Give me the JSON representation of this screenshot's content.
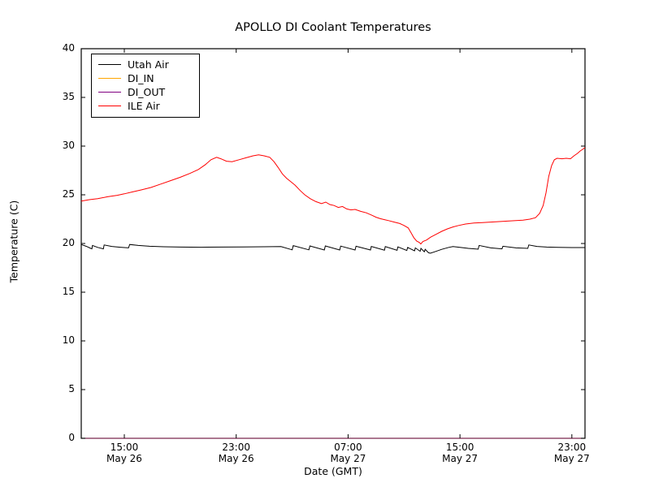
{
  "chart_data": {
    "type": "line",
    "title": "APOLLO DI Coolant Temperatures",
    "xlabel": "Date (GMT)",
    "ylabel": "Temperature (C)",
    "x_unit": "hours since May 26 00:00 GMT",
    "xlim": [
      11.92,
      47.94
    ],
    "ylim": [
      0,
      40
    ],
    "grid": false,
    "legend_position": "upper left",
    "background_color": "#ffffff",
    "frame_color": "#000000",
    "yticks": [
      0,
      5,
      10,
      15,
      20,
      25,
      30,
      35,
      40
    ],
    "xticks": [
      {
        "value": 15,
        "time": "15:00",
        "date": "May 26"
      },
      {
        "value": 23,
        "time": "23:00",
        "date": "May 26"
      },
      {
        "value": 31,
        "time": "07:00",
        "date": "May 27"
      },
      {
        "value": 39,
        "time": "15:00",
        "date": "May 27"
      },
      {
        "value": 47,
        "time": "23:00",
        "date": "May 27"
      }
    ],
    "series": [
      {
        "name": "Utah Air",
        "color": "#000000",
        "points": [
          [
            11.92,
            19.9
          ],
          [
            12.3,
            19.7
          ],
          [
            12.6,
            19.5
          ],
          [
            12.68,
            19.45
          ],
          [
            12.72,
            19.8
          ],
          [
            13.1,
            19.6
          ],
          [
            13.5,
            19.45
          ],
          [
            13.56,
            19.85
          ],
          [
            14.1,
            19.7
          ],
          [
            14.7,
            19.62
          ],
          [
            15.3,
            19.55
          ],
          [
            15.38,
            19.9
          ],
          [
            16.0,
            19.8
          ],
          [
            16.8,
            19.72
          ],
          [
            17.8,
            19.67
          ],
          [
            19.0,
            19.63
          ],
          [
            20.5,
            19.62
          ],
          [
            22.0,
            19.63
          ],
          [
            23.5,
            19.65
          ],
          [
            25.0,
            19.67
          ],
          [
            26.2,
            19.68
          ],
          [
            27.0,
            19.35
          ],
          [
            27.08,
            19.78
          ],
          [
            28.2,
            19.35
          ],
          [
            28.27,
            19.75
          ],
          [
            29.3,
            19.33
          ],
          [
            29.37,
            19.75
          ],
          [
            30.4,
            19.33
          ],
          [
            30.47,
            19.73
          ],
          [
            31.5,
            19.33
          ],
          [
            31.57,
            19.72
          ],
          [
            32.6,
            19.33
          ],
          [
            32.66,
            19.7
          ],
          [
            33.6,
            19.32
          ],
          [
            33.66,
            19.68
          ],
          [
            34.5,
            19.3
          ],
          [
            34.56,
            19.65
          ],
          [
            35.2,
            19.28
          ],
          [
            35.26,
            19.6
          ],
          [
            35.75,
            19.25
          ],
          [
            35.81,
            19.55
          ],
          [
            36.15,
            19.2
          ],
          [
            36.21,
            19.5
          ],
          [
            36.45,
            19.15
          ],
          [
            36.51,
            19.4
          ],
          [
            36.75,
            19.05
          ],
          [
            36.88,
            19.0
          ],
          [
            37.2,
            19.15
          ],
          [
            37.7,
            19.4
          ],
          [
            38.2,
            19.6
          ],
          [
            38.5,
            19.68
          ],
          [
            39.0,
            19.6
          ],
          [
            39.6,
            19.5
          ],
          [
            40.3,
            19.42
          ],
          [
            40.37,
            19.8
          ],
          [
            41.2,
            19.55
          ],
          [
            42.0,
            19.45
          ],
          [
            42.07,
            19.72
          ],
          [
            43.0,
            19.55
          ],
          [
            43.85,
            19.5
          ],
          [
            43.92,
            19.85
          ],
          [
            44.5,
            19.7
          ],
          [
            45.2,
            19.63
          ],
          [
            46.0,
            19.6
          ],
          [
            47.0,
            19.58
          ],
          [
            47.94,
            19.58
          ]
        ]
      },
      {
        "name": "DI_IN",
        "color": "#ffa500",
        "note": "constant 0 - lies along the bottom axis",
        "points": [
          [
            11.92,
            0
          ],
          [
            47.94,
            0
          ]
        ]
      },
      {
        "name": "DI_OUT",
        "color": "#800080",
        "note": "constant 0 - lies along the bottom axis",
        "points": [
          [
            11.92,
            0
          ],
          [
            47.94,
            0
          ]
        ]
      },
      {
        "name": "ILE Air",
        "color": "#ff0000",
        "points": [
          [
            11.92,
            24.35
          ],
          [
            12.5,
            24.5
          ],
          [
            13.1,
            24.6
          ],
          [
            13.8,
            24.8
          ],
          [
            14.5,
            24.95
          ],
          [
            15.0,
            25.1
          ],
          [
            15.6,
            25.3
          ],
          [
            16.2,
            25.5
          ],
          [
            16.9,
            25.75
          ],
          [
            17.6,
            26.1
          ],
          [
            18.3,
            26.45
          ],
          [
            19.0,
            26.8
          ],
          [
            19.7,
            27.2
          ],
          [
            20.3,
            27.6
          ],
          [
            20.8,
            28.1
          ],
          [
            21.2,
            28.6
          ],
          [
            21.6,
            28.85
          ],
          [
            21.9,
            28.7
          ],
          [
            22.3,
            28.45
          ],
          [
            22.7,
            28.4
          ],
          [
            23.2,
            28.6
          ],
          [
            23.7,
            28.8
          ],
          [
            24.2,
            29.0
          ],
          [
            24.6,
            29.1
          ],
          [
            25.0,
            29.0
          ],
          [
            25.4,
            28.85
          ],
          [
            25.7,
            28.4
          ],
          [
            26.0,
            27.8
          ],
          [
            26.3,
            27.15
          ],
          [
            26.6,
            26.7
          ],
          [
            26.9,
            26.35
          ],
          [
            27.2,
            26.0
          ],
          [
            27.6,
            25.4
          ],
          [
            27.9,
            25.0
          ],
          [
            28.3,
            24.6
          ],
          [
            28.7,
            24.3
          ],
          [
            29.1,
            24.1
          ],
          [
            29.4,
            24.25
          ],
          [
            29.7,
            24.0
          ],
          [
            30.0,
            23.9
          ],
          [
            30.3,
            23.7
          ],
          [
            30.6,
            23.8
          ],
          [
            30.9,
            23.55
          ],
          [
            31.2,
            23.45
          ],
          [
            31.5,
            23.5
          ],
          [
            31.9,
            23.3
          ],
          [
            32.3,
            23.15
          ],
          [
            32.7,
            22.9
          ],
          [
            33.0,
            22.7
          ],
          [
            33.3,
            22.55
          ],
          [
            33.6,
            22.45
          ],
          [
            33.9,
            22.35
          ],
          [
            34.3,
            22.2
          ],
          [
            34.7,
            22.05
          ],
          [
            35.0,
            21.85
          ],
          [
            35.3,
            21.6
          ],
          [
            35.5,
            21.1
          ],
          [
            35.7,
            20.6
          ],
          [
            35.9,
            20.25
          ],
          [
            36.1,
            20.1
          ],
          [
            36.2,
            19.95
          ],
          [
            36.35,
            20.2
          ],
          [
            36.6,
            20.35
          ],
          [
            36.9,
            20.65
          ],
          [
            37.3,
            20.95
          ],
          [
            37.7,
            21.25
          ],
          [
            38.1,
            21.5
          ],
          [
            38.5,
            21.7
          ],
          [
            38.9,
            21.85
          ],
          [
            39.4,
            22.0
          ],
          [
            40.0,
            22.1
          ],
          [
            40.6,
            22.15
          ],
          [
            41.2,
            22.2
          ],
          [
            41.8,
            22.25
          ],
          [
            42.4,
            22.3
          ],
          [
            43.0,
            22.35
          ],
          [
            43.5,
            22.4
          ],
          [
            44.0,
            22.5
          ],
          [
            44.4,
            22.65
          ],
          [
            44.7,
            23.1
          ],
          [
            44.95,
            23.9
          ],
          [
            45.15,
            25.2
          ],
          [
            45.35,
            26.9
          ],
          [
            45.55,
            28.0
          ],
          [
            45.75,
            28.6
          ],
          [
            45.95,
            28.75
          ],
          [
            46.3,
            28.7
          ],
          [
            46.6,
            28.75
          ],
          [
            46.9,
            28.7
          ],
          [
            47.15,
            29.0
          ],
          [
            47.4,
            29.25
          ],
          [
            47.6,
            29.5
          ],
          [
            47.8,
            29.7
          ],
          [
            47.94,
            29.85
          ]
        ]
      }
    ]
  }
}
